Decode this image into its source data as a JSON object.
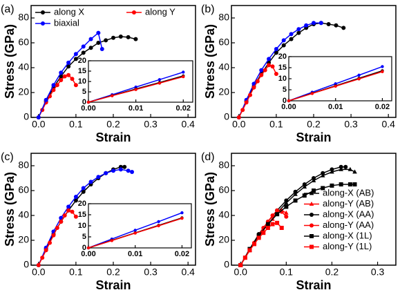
{
  "chart_data": [
    {
      "type": "line",
      "label": "(a)",
      "xlabel": "Strain",
      "ylabel": "Stress (GPa)",
      "xlim": [
        -0.02,
        0.42
      ],
      "ylim": [
        0,
        90
      ],
      "xticks": [
        {
          "value": 0,
          "label": "0.0"
        },
        0.1,
        0.2,
        0.3,
        0.4
      ],
      "yticks": [
        0,
        20,
        40,
        60,
        80
      ],
      "legend": "upper left",
      "series": [
        {
          "name": "along X",
          "color": "#000000",
          "marker": "circle",
          "x": [
            0,
            0.02,
            0.04,
            0.06,
            0.08,
            0.1,
            0.12,
            0.14,
            0.16,
            0.18,
            0.2,
            0.22,
            0.24,
            0.26
          ],
          "values": [
            0,
            13,
            24,
            33,
            41,
            47,
            52,
            56,
            60,
            62,
            64,
            65,
            64.5,
            63
          ]
        },
        {
          "name": "along Y",
          "color": "#ff0000",
          "marker": "circle",
          "x": [
            0,
            0.01,
            0.02,
            0.03,
            0.04,
            0.05,
            0.06,
            0.07,
            0.08,
            0.09,
            0.1
          ],
          "values": [
            0,
            6,
            12,
            17,
            22,
            26,
            30,
            33,
            34,
            31,
            26
          ]
        },
        {
          "name": "biaxial",
          "color": "#0000ff",
          "marker": "circle",
          "x": [
            0,
            0.02,
            0.04,
            0.06,
            0.08,
            0.1,
            0.12,
            0.14,
            0.16,
            0.17
          ],
          "values": [
            0,
            14,
            26,
            36,
            44,
            51,
            57,
            63,
            68,
            55
          ]
        }
      ]
    },
    {
      "type": "line",
      "label": "(b)",
      "xlabel": "Strain",
      "ylabel": "Stress (GPa)",
      "xlim": [
        -0.02,
        0.42
      ],
      "ylim": [
        0,
        90
      ],
      "xticks": [
        {
          "value": 0,
          "label": "0.0"
        },
        0.1,
        0.2,
        0.3,
        0.4
      ],
      "yticks": [
        0,
        20,
        40,
        60,
        80
      ],
      "series": [
        {
          "color": "#000000",
          "marker": "circle",
          "x": [
            0,
            0.02,
            0.04,
            0.06,
            0.08,
            0.1,
            0.12,
            0.14,
            0.16,
            0.18,
            0.2,
            0.22,
            0.24,
            0.26,
            0.28
          ],
          "values": [
            0,
            13,
            25,
            35,
            44,
            52,
            58,
            63,
            68,
            72,
            75,
            76,
            75,
            74,
            72
          ]
        },
        {
          "color": "#0000ff",
          "marker": "circle",
          "x": [
            0,
            0.02,
            0.04,
            0.06,
            0.08,
            0.1,
            0.12,
            0.14,
            0.16,
            0.18,
            0.2,
            0.22
          ],
          "values": [
            0,
            14,
            27,
            38,
            47,
            55,
            62,
            67,
            71,
            74,
            76,
            76
          ]
        },
        {
          "color": "#ff0000",
          "marker": "circle",
          "x": [
            0,
            0.01,
            0.02,
            0.03,
            0.04,
            0.05,
            0.06,
            0.07,
            0.08,
            0.09,
            0.1
          ],
          "values": [
            0,
            6,
            12,
            18,
            24,
            29,
            34,
            38,
            42,
            41,
            35
          ]
        }
      ]
    },
    {
      "type": "line",
      "label": "(c)",
      "xlabel": "Strain",
      "ylabel": "Stress (GPa)",
      "xlim": [
        -0.02,
        0.42
      ],
      "ylim": [
        0,
        90
      ],
      "xticks": [
        {
          "value": 0,
          "label": "0.0"
        },
        0.1,
        0.2,
        0.3,
        0.4
      ],
      "yticks": [
        0,
        20,
        40,
        60,
        80
      ],
      "series": [
        {
          "color": "#000000",
          "marker": "circle",
          "x": [
            0,
            0.02,
            0.04,
            0.06,
            0.08,
            0.1,
            0.12,
            0.14,
            0.16,
            0.18,
            0.2,
            0.22,
            0.23
          ],
          "values": [
            0,
            13,
            25,
            35,
            44,
            52,
            59,
            65,
            70,
            74,
            77,
            79,
            79
          ]
        },
        {
          "color": "#0000ff",
          "marker": "circle",
          "x": [
            0,
            0.02,
            0.04,
            0.06,
            0.08,
            0.1,
            0.12,
            0.14,
            0.16,
            0.18,
            0.2,
            0.22,
            0.24,
            0.25
          ],
          "values": [
            0,
            14,
            27,
            38,
            47,
            55,
            62,
            67,
            71,
            74,
            76,
            77,
            76,
            75
          ]
        },
        {
          "color": "#ff0000",
          "marker": "circle",
          "x": [
            0,
            0.01,
            0.02,
            0.03,
            0.04,
            0.05,
            0.06,
            0.07,
            0.08,
            0.09,
            0.1
          ],
          "values": [
            0,
            6,
            12,
            18,
            24,
            30,
            35,
            40,
            44,
            43,
            39
          ]
        }
      ]
    },
    {
      "type": "line",
      "label": "(d)",
      "xlabel": "Strain",
      "ylabel": "Stress (GPa)",
      "xlim": [
        -0.02,
        0.34
      ],
      "ylim": [
        0,
        90
      ],
      "xticks": [
        {
          "value": 0,
          "label": "0.0"
        },
        0.1,
        0.2,
        0.3
      ],
      "yticks": [
        0,
        20,
        40,
        60,
        80
      ],
      "legend": "center right",
      "series": [
        {
          "name": "along-X (AB)",
          "color": "#000000",
          "marker": "triangle",
          "x": [
            0,
            0.02,
            0.04,
            0.06,
            0.08,
            0.1,
            0.12,
            0.14,
            0.16,
            0.18,
            0.2,
            0.22,
            0.24,
            0.25
          ],
          "values": [
            0,
            12,
            23,
            33,
            42,
            50,
            57,
            63,
            68,
            72,
            75,
            77,
            77,
            75
          ]
        },
        {
          "name": "along-Y (AB)",
          "color": "#ff0000",
          "marker": "triangle",
          "x": [
            0,
            0.01,
            0.02,
            0.03,
            0.04,
            0.05,
            0.06,
            0.07,
            0.08,
            0.09,
            0.1
          ],
          "values": [
            0,
            6,
            12,
            18,
            23,
            28,
            33,
            37,
            41,
            44,
            42
          ]
        },
        {
          "name": "along-X (AA)",
          "color": "#000000",
          "marker": "circle",
          "x": [
            0,
            0.02,
            0.04,
            0.06,
            0.08,
            0.1,
            0.12,
            0.14,
            0.16,
            0.18,
            0.2,
            0.22,
            0.23
          ],
          "values": [
            0,
            13,
            25,
            35,
            44,
            52,
            59,
            65,
            70,
            74,
            77,
            79,
            79
          ]
        },
        {
          "name": "along-Y (AA)",
          "color": "#ff0000",
          "marker": "circle",
          "x": [
            0,
            0.01,
            0.02,
            0.03,
            0.04,
            0.05,
            0.06,
            0.07,
            0.08,
            0.09,
            0.1
          ],
          "values": [
            0,
            6,
            12,
            18,
            24,
            30,
            35,
            40,
            44,
            43,
            39
          ]
        },
        {
          "name": "along-X (1L)",
          "color": "#000000",
          "marker": "square",
          "x": [
            0,
            0.02,
            0.04,
            0.06,
            0.08,
            0.1,
            0.12,
            0.14,
            0.16,
            0.18,
            0.2,
            0.22,
            0.24,
            0.25
          ],
          "values": [
            0,
            13,
            24,
            33,
            41,
            47,
            52,
            56,
            60,
            62,
            64,
            65,
            65,
            65
          ]
        },
        {
          "name": "along-Y (1L)",
          "color": "#ff0000",
          "marker": "square",
          "x": [
            0,
            0.01,
            0.02,
            0.03,
            0.04,
            0.05,
            0.06,
            0.07,
            0.08,
            0.09
          ],
          "values": [
            0,
            6,
            12,
            17,
            22,
            26,
            30,
            33,
            34,
            30
          ]
        }
      ]
    },
    {
      "type": "line",
      "inset": true,
      "xlim": [
        0,
        0.022
      ],
      "ylim": [
        0,
        20
      ],
      "xticks": [
        {
          "value": 0,
          "label": "0.00"
        },
        0.01,
        0.02
      ],
      "yticks": [
        0,
        5,
        10,
        15,
        20
      ],
      "series": [
        {
          "color": "#0000ff",
          "marker": "circle",
          "x": [
            0,
            0.005,
            0.01,
            0.015,
            0.02
          ],
          "values": [
            0,
            3.6,
            7.3,
            10.9,
            14.5
          ]
        },
        {
          "color": "#000000",
          "marker": "circle",
          "x": [
            0,
            0.005,
            0.01,
            0.015,
            0.02
          ],
          "values": [
            0,
            3.2,
            6.4,
            9.5,
            12.7
          ]
        },
        {
          "color": "#ff0000",
          "marker": "circle",
          "x": [
            0,
            0.005,
            0.01,
            0.015,
            0.02
          ],
          "values": [
            0,
            3.1,
            6.1,
            9.2,
            12.3
          ]
        }
      ]
    },
    {
      "type": "line",
      "inset": true,
      "xlim": [
        0,
        0.022
      ],
      "ylim": [
        0,
        20
      ],
      "xticks": [
        {
          "value": 0,
          "label": "0.00"
        },
        0.01,
        0.02
      ],
      "yticks": [
        0,
        5,
        10,
        15,
        20
      ],
      "series": [
        {
          "color": "#0000ff",
          "marker": "circle",
          "x": [
            0,
            0.005,
            0.01,
            0.015,
            0.02
          ],
          "values": [
            0,
            3.9,
            7.7,
            11.6,
            15.5
          ]
        },
        {
          "color": "#000000",
          "marker": "circle",
          "x": [
            0,
            0.005,
            0.01,
            0.015,
            0.02
          ],
          "values": [
            0,
            3.4,
            6.8,
            10.2,
            13.6
          ]
        },
        {
          "color": "#ff0000",
          "marker": "circle",
          "x": [
            0,
            0.005,
            0.01,
            0.015,
            0.02
          ],
          "values": [
            0,
            3.3,
            6.6,
            9.9,
            13.2
          ]
        }
      ]
    },
    {
      "type": "line",
      "inset": true,
      "xlim": [
        0,
        0.022
      ],
      "ylim": [
        0,
        20
      ],
      "xticks": [
        {
          "value": 0,
          "label": "0.00"
        },
        0.01,
        0.02
      ],
      "yticks": [
        0,
        5,
        10,
        15,
        20
      ],
      "series": [
        {
          "color": "#0000ff",
          "marker": "circle",
          "x": [
            0,
            0.005,
            0.01,
            0.015,
            0.02
          ],
          "values": [
            0,
            4,
            8,
            11.9,
            15.9
          ]
        },
        {
          "color": "#000000",
          "marker": "circle",
          "x": [
            0,
            0.005,
            0.01,
            0.015,
            0.02
          ],
          "values": [
            0,
            3.4,
            6.8,
            10.2,
            13.6
          ]
        },
        {
          "color": "#ff0000",
          "marker": "circle",
          "x": [
            0,
            0.005,
            0.01,
            0.015,
            0.02
          ],
          "values": [
            0,
            3.3,
            6.7,
            10,
            13.4
          ]
        }
      ]
    }
  ]
}
